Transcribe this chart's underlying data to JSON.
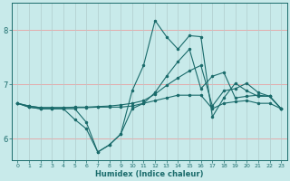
{
  "xlabel": "Humidex (Indice chaleur)",
  "bg_color": "#c8eaea",
  "grid_color_h": "#e8a0a0",
  "grid_color_v": "#b0cccc",
  "line_color": "#1a6b6b",
  "xlim": [
    -0.5,
    23.5
  ],
  "ylim": [
    5.6,
    8.5
  ],
  "yticks": [
    6,
    7,
    8
  ],
  "xticks": [
    0,
    1,
    2,
    3,
    4,
    5,
    6,
    7,
    8,
    9,
    10,
    11,
    12,
    13,
    14,
    15,
    16,
    17,
    18,
    19,
    20,
    21,
    22,
    23
  ],
  "line1_x": [
    0,
    1,
    2,
    3,
    4,
    5,
    6,
    7,
    8,
    9,
    10,
    11,
    12,
    13,
    14,
    15,
    16,
    17,
    18,
    19,
    20,
    21,
    22,
    23
  ],
  "line1_y": [
    6.65,
    6.58,
    6.55,
    6.55,
    6.55,
    6.55,
    6.3,
    5.75,
    5.88,
    6.08,
    6.55,
    6.65,
    6.7,
    6.75,
    6.8,
    6.8,
    6.8,
    6.55,
    6.65,
    6.68,
    6.7,
    6.65,
    6.65,
    6.55
  ],
  "line2_x": [
    0,
    1,
    2,
    3,
    4,
    5,
    6,
    7,
    8,
    9,
    10,
    11,
    12,
    13,
    14,
    15,
    16,
    17,
    18,
    19,
    20,
    21,
    22,
    23
  ],
  "line2_y": [
    6.65,
    6.6,
    6.57,
    6.57,
    6.57,
    6.58,
    6.58,
    6.59,
    6.6,
    6.62,
    6.65,
    6.7,
    6.82,
    6.98,
    7.12,
    7.25,
    7.35,
    6.6,
    6.88,
    6.92,
    7.02,
    6.85,
    6.78,
    6.55
  ],
  "line3_x": [
    0,
    1,
    2,
    3,
    4,
    5,
    6,
    7,
    8,
    9,
    10,
    11,
    12,
    13,
    14,
    15,
    16,
    17,
    18,
    19,
    20,
    21,
    22,
    23
  ],
  "line3_y": [
    6.65,
    6.6,
    6.57,
    6.57,
    6.57,
    6.57,
    6.57,
    6.58,
    6.58,
    6.58,
    6.6,
    6.65,
    6.85,
    7.15,
    7.42,
    7.65,
    6.92,
    7.15,
    7.22,
    6.75,
    6.78,
    6.8,
    6.78,
    6.55
  ],
  "main_x": [
    0,
    1,
    2,
    3,
    4,
    5,
    6,
    7,
    8,
    9,
    10,
    11,
    12,
    13,
    14,
    15,
    16,
    17,
    18,
    19,
    20,
    21,
    22,
    23
  ],
  "main_y": [
    6.65,
    6.58,
    6.55,
    6.55,
    6.55,
    6.35,
    6.18,
    5.75,
    5.88,
    6.08,
    6.88,
    7.35,
    8.18,
    7.88,
    7.65,
    7.9,
    7.88,
    6.4,
    6.75,
    7.02,
    6.88,
    6.78,
    6.78,
    6.55
  ]
}
